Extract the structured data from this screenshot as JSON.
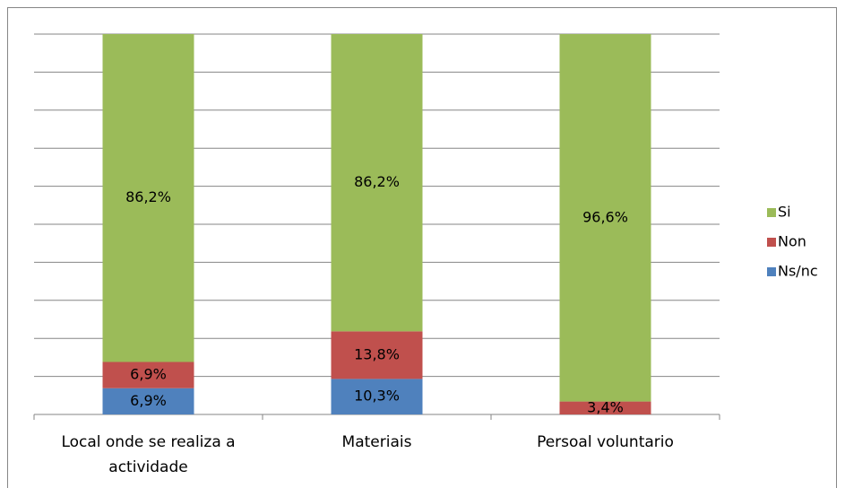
{
  "chart_data": {
    "type": "bar",
    "stacking": "percent",
    "categories": [
      "Local onde se realiza a actividade",
      "Materiais",
      "Persoal voluntario"
    ],
    "series": [
      {
        "name": "Ns/nc",
        "color": "#4f81bd",
        "values": [
          6.9,
          10.3,
          0
        ],
        "value_labels": [
          "6,9%",
          "10,3%",
          null
        ]
      },
      {
        "name": "Non",
        "color": "#c0504d",
        "values": [
          6.9,
          13.8,
          3.4
        ],
        "value_labels": [
          "6,9%",
          "13,8%",
          "3,4%"
        ]
      },
      {
        "name": "Si",
        "color": "#9bbb59",
        "values": [
          86.2,
          86.2,
          96.6
        ],
        "value_labels": [
          "86,2%",
          "86,2%",
          "96,6%"
        ]
      }
    ],
    "ylim": [
      0,
      100
    ],
    "yticks": [
      0,
      10,
      20,
      30,
      40,
      50,
      60,
      70,
      80,
      90,
      100
    ],
    "grid": true,
    "legend": "right"
  }
}
